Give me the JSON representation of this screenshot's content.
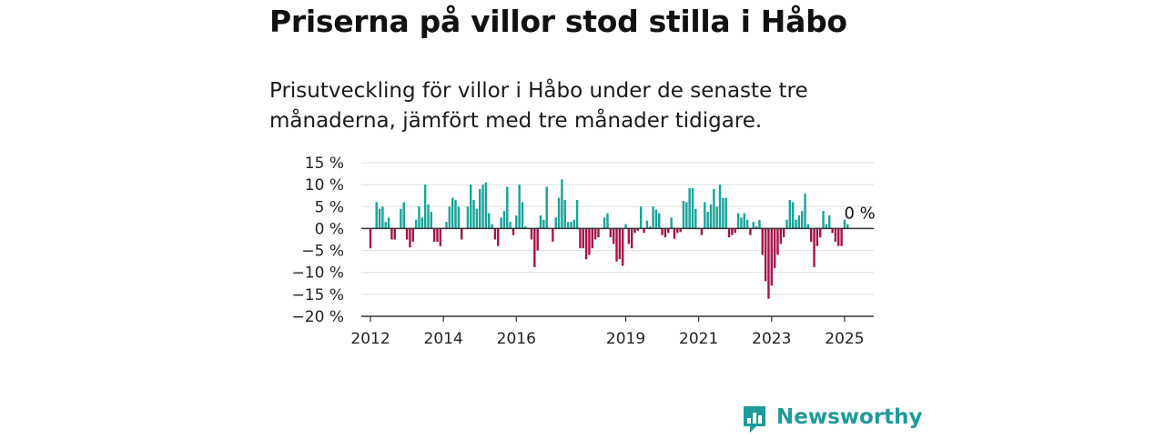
{
  "title": "Priserna på villor stod stilla i Håbo",
  "subtitle": "Prisutveckling för villor i Håbo under de senaste tre månaderna, jämfört med tre månader tidigare.",
  "brand": {
    "name": "Newsworthy",
    "icon": "newsworthy-logo-icon",
    "color": "#1f9a9a"
  },
  "chart_data": {
    "type": "bar",
    "title": "",
    "xlabel": "",
    "ylabel": "",
    "ylim": [
      -20,
      15
    ],
    "yticks": [
      15,
      10,
      5,
      0,
      -5,
      -10,
      -15,
      -20
    ],
    "ytick_labels": [
      "15 %",
      "10 %",
      "5 %",
      "0 %",
      "−5 %",
      "−10 %",
      "−15 %",
      "−20 %"
    ],
    "xlim": [
      2011.75,
      2025.8
    ],
    "xticks": [
      2012,
      2014,
      2016,
      2019,
      2021,
      2023,
      2025
    ],
    "xtick_labels": [
      "2012",
      "2014",
      "2016",
      "2019",
      "2021",
      "2023",
      "2025"
    ],
    "grid": true,
    "positive_color": "#17a398",
    "negative_color": "#a8104a",
    "annotation": {
      "text": "0 %",
      "x": "2025-06",
      "y": 0
    },
    "start_month": "2012-01",
    "frequency": "monthly",
    "values": [
      -4.5,
      0,
      6,
      4.5,
      5,
      1.5,
      2.5,
      -2.5,
      -2.5,
      0,
      4.5,
      6,
      -2.5,
      -4.3,
      -3,
      2,
      5,
      2.5,
      10,
      5.5,
      3.8,
      -3,
      -3,
      -4,
      0,
      1.5,
      5,
      7,
      6.5,
      5,
      -2.5,
      0,
      5,
      10,
      6.5,
      4.5,
      9,
      10,
      10.5,
      3.5,
      1,
      -2.5,
      -4,
      2.5,
      4,
      9.5,
      1.5,
      -1.5,
      3,
      10,
      6,
      0.5,
      0,
      -2.5,
      -8.8,
      -5,
      3,
      2,
      9.5,
      0,
      -3,
      2.5,
      7,
      11.2,
      6.5,
      1.5,
      1.5,
      2,
      6.5,
      -4.5,
      -4.5,
      -7,
      -6,
      -4.5,
      -2.5,
      -2,
      0,
      2.5,
      3.5,
      -2,
      -3.5,
      -7.5,
      -7,
      -8.5,
      1,
      -3.5,
      -4.5,
      -1,
      -0.5,
      5,
      -1,
      1.8,
      0.5,
      5,
      4.3,
      3.5,
      -1.5,
      -2,
      -1,
      2.5,
      -2.3,
      -1,
      -0.8,
      6.3,
      6,
      9.2,
      9.2,
      4.5,
      0,
      -1.5,
      6,
      3.8,
      5.5,
      9,
      5,
      10,
      7,
      7,
      -2,
      -1.5,
      -1,
      3.5,
      2.5,
      3.5,
      2,
      -1.5,
      1.5,
      0.5,
      2,
      -6,
      -12,
      -16,
      -13,
      -9,
      -6,
      -3.5,
      -2,
      2,
      6.5,
      6,
      2,
      3,
      4,
      8,
      1,
      -3,
      -8.8,
      -4,
      -2,
      4,
      1,
      3,
      -1,
      -3,
      -4,
      -4,
      2,
      1
    ]
  }
}
